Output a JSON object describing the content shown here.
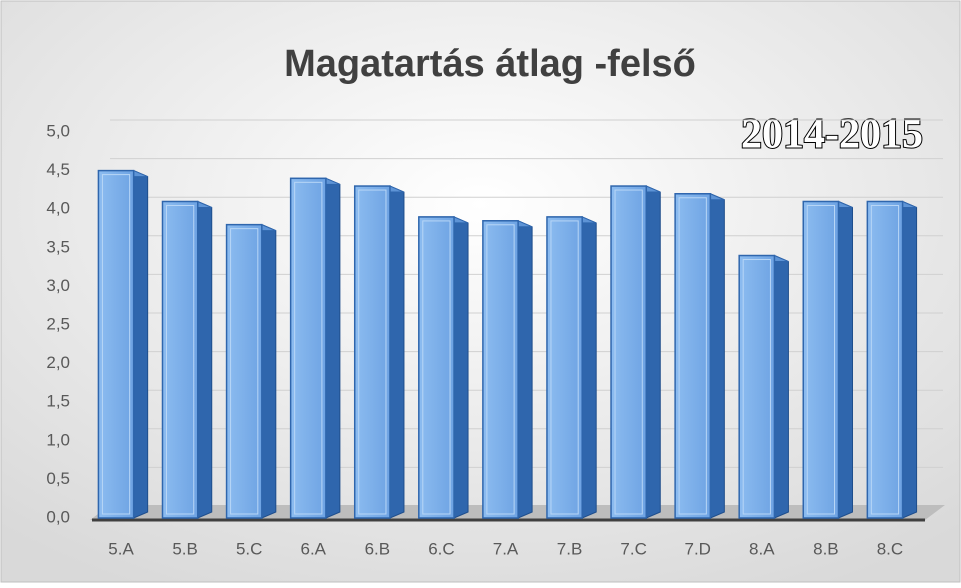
{
  "chart_data": {
    "type": "bar3d",
    "title": "Magatartás átlag -felső",
    "annotation": "2014-2015",
    "categories": [
      "5.A",
      "5.B",
      "5.C",
      "6.A",
      "6.B",
      "6.C",
      "7.A",
      "7.B",
      "7.C",
      "7.D",
      "8.A",
      "8.B",
      "8.C"
    ],
    "values": [
      4.5,
      4.1,
      3.8,
      4.4,
      4.3,
      3.9,
      3.85,
      3.9,
      4.3,
      4.2,
      3.4,
      4.1,
      4.1
    ],
    "color": "#7fb2ea",
    "ylim": [
      0,
      5
    ],
    "yticks": [
      {
        "value": 0,
        "label": "0,0"
      },
      {
        "value": 0.5,
        "label": "0,5"
      },
      {
        "value": 1,
        "label": "1,0"
      },
      {
        "value": 1.5,
        "label": "1,5"
      },
      {
        "value": 2,
        "label": "2,0"
      },
      {
        "value": 2.5,
        "label": "2,5"
      },
      {
        "value": 3,
        "label": "3,0"
      },
      {
        "value": 3.5,
        "label": "3,5"
      },
      {
        "value": 4,
        "label": "4,0"
      },
      {
        "value": 4.5,
        "label": "4,5"
      },
      {
        "value": 5,
        "label": "5,0"
      }
    ],
    "grid": true
  }
}
